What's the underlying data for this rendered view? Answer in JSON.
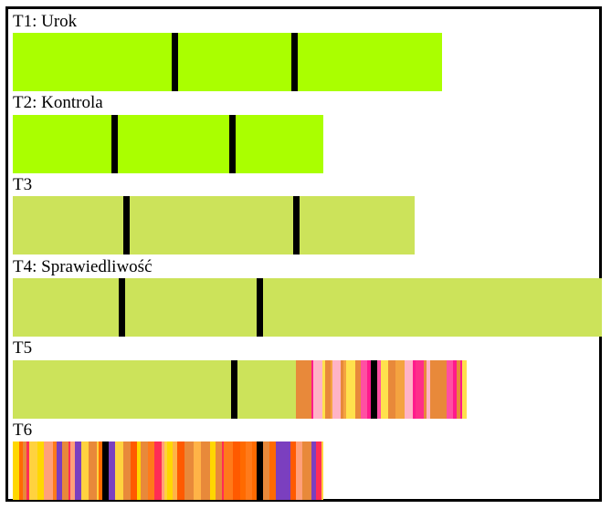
{
  "colors": {
    "bright": "#aaff00",
    "olive": "#cce35a",
    "marker": "#000000",
    "stripes_t5": [
      "#e8893a",
      "#ff1a8c",
      "#ffd23f",
      "#e8893a",
      "#ffb3c6",
      "#ff2d8a",
      "#f4a340",
      "#ffe14d",
      "#e8893a",
      "#ff4fa3"
    ],
    "stripes_t6": [
      "#e8893a",
      "#ff6a00",
      "#ffb347",
      "#ff2d55",
      "#ffd23f",
      "#ff7a1a",
      "#ffa07a",
      "#7b3fbf",
      "#ff5a00",
      "#e8893a",
      "#ffd700",
      "#ff3b3b"
    ]
  },
  "tracks": [
    {
      "id": "t1",
      "label": "T1: Urok"
    },
    {
      "id": "t2",
      "label": "T2: Kontrola"
    },
    {
      "id": "t3",
      "label": "T3"
    },
    {
      "id": "t4",
      "label": "T4: Sprawiedliwość"
    },
    {
      "id": "t5",
      "label": "T5"
    },
    {
      "id": "t6",
      "label": "T6"
    }
  ]
}
